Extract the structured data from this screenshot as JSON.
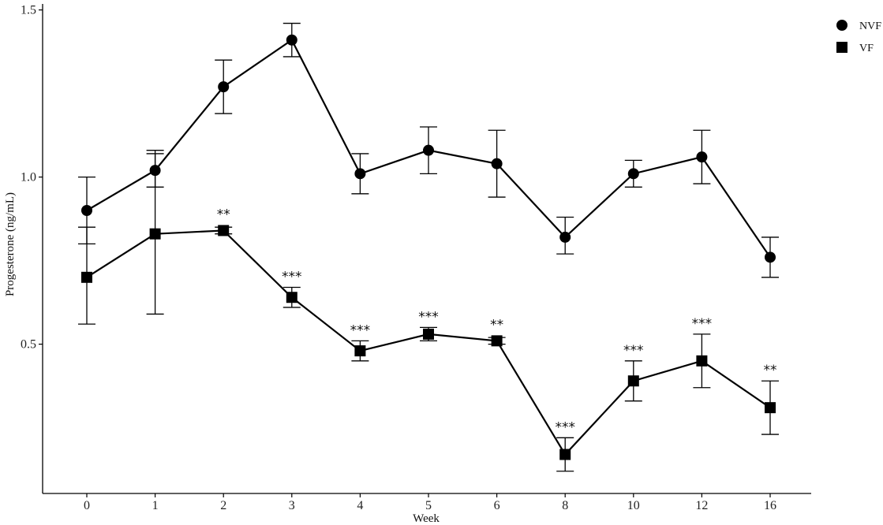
{
  "chart_data": {
    "type": "line",
    "title": "",
    "xlabel": "Week",
    "ylabel": "Progesterone (ng/mL)",
    "categories": [
      "0",
      "1",
      "2",
      "3",
      "4",
      "5",
      "6",
      "8",
      "10",
      "12",
      "16"
    ],
    "ylim": [
      0.05,
      1.55
    ],
    "yticks": [
      0.5,
      1.0,
      1.5
    ],
    "ytick_labels": [
      "0.5",
      "1.0",
      "1.5"
    ],
    "grid": false,
    "legend_position": "top-right",
    "series": [
      {
        "name": "NVF",
        "marker": "circle",
        "values": [
          0.9,
          1.02,
          1.27,
          1.41,
          1.01,
          1.08,
          1.04,
          0.82,
          1.01,
          1.06,
          0.76
        ],
        "err_low": [
          0.8,
          0.97,
          1.19,
          1.36,
          0.95,
          1.01,
          0.94,
          0.77,
          0.97,
          0.98,
          0.7
        ],
        "err_high": [
          1.0,
          1.08,
          1.35,
          1.46,
          1.07,
          1.15,
          1.14,
          0.88,
          1.05,
          1.14,
          0.82
        ]
      },
      {
        "name": "VF",
        "marker": "square",
        "values": [
          0.7,
          0.83,
          0.84,
          0.64,
          0.48,
          0.53,
          0.51,
          0.17,
          0.39,
          0.45,
          0.31
        ],
        "err_low": [
          0.56,
          0.59,
          0.83,
          0.61,
          0.45,
          0.51,
          0.5,
          0.12,
          0.33,
          0.37,
          0.23
        ],
        "err_high": [
          0.85,
          1.07,
          0.85,
          0.67,
          0.51,
          0.55,
          0.52,
          0.22,
          0.45,
          0.53,
          0.39
        ]
      }
    ],
    "annotations": [
      {
        "x": "2",
        "text": "**"
      },
      {
        "x": "3",
        "text": "***"
      },
      {
        "x": "4",
        "text": "***"
      },
      {
        "x": "5",
        "text": "***"
      },
      {
        "x": "6",
        "text": "**"
      },
      {
        "x": "8",
        "text": "***"
      },
      {
        "x": "10",
        "text": "***"
      },
      {
        "x": "12",
        "text": "***"
      },
      {
        "x": "16",
        "text": "**"
      }
    ]
  }
}
